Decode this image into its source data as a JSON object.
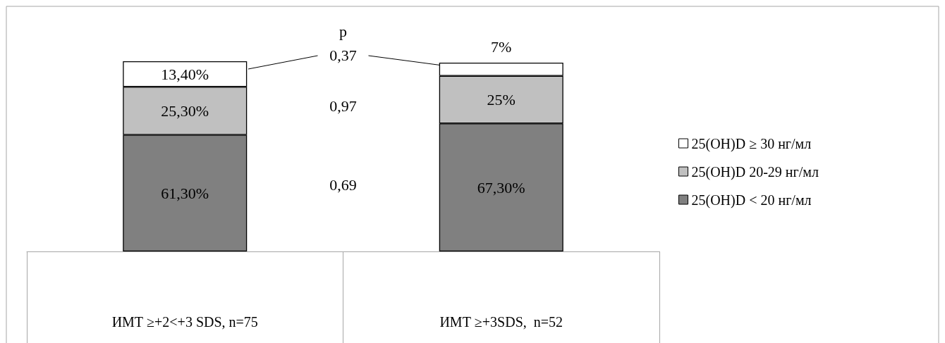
{
  "chart_data": {
    "type": "bar",
    "stacked": true,
    "categories": [
      "ИМТ ≥+2<+3 SDS, n=75",
      "ИМТ ≥+3SDS,  n=52"
    ],
    "series": [
      {
        "name": "25(OH)D < 20 нг/мл",
        "color": "#808080",
        "values": [
          61.3,
          67.3
        ],
        "value_labels": [
          "61,30%",
          "67,30%"
        ]
      },
      {
        "name": "25(OH)D 20-29 нг/мл",
        "color": "#c0c0c0",
        "values": [
          25.3,
          25
        ],
        "value_labels": [
          "25,30%",
          "25%"
        ]
      },
      {
        "name": "25(OH)D ≥ 30 нг/мл",
        "color": "#ffffff",
        "values": [
          13.4,
          7
        ],
        "value_labels": [
          "13,40%",
          "7%"
        ]
      }
    ],
    "annotations": [
      "p",
      "0,37",
      "0,97",
      "0,69"
    ],
    "legend": "right",
    "grid": false
  }
}
